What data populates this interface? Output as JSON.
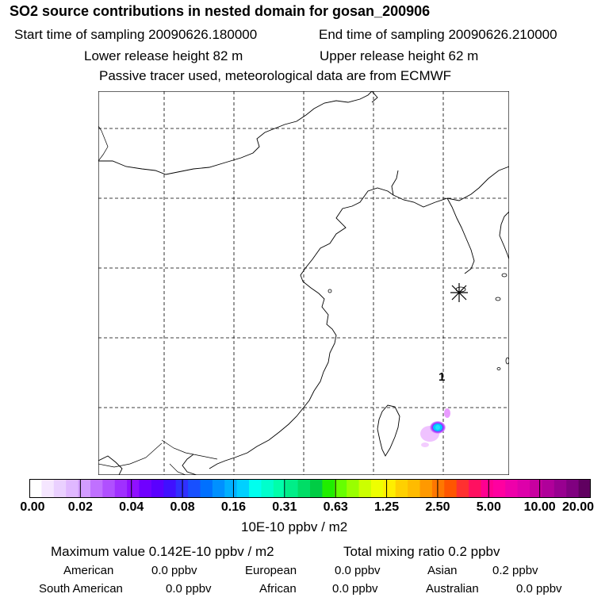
{
  "header": {
    "title": "SO2 source contributions in nested domain for gosan_200906",
    "start_sampling": "Start time of sampling 20090626.180000",
    "end_sampling": "End time of sampling 20090626.210000",
    "lower_release": "Lower release height   82 m",
    "upper_release": "Upper release height   62 m",
    "tracer_note": "Passive tracer used, meteorological data are from ECMWF"
  },
  "map": {
    "receptor_icon": "asterisk-icon",
    "source_label": "1",
    "plume_peak_color": "#00c8ff",
    "plume_outer_color": "#e080ff"
  },
  "colorbar": {
    "ticks": [
      "0.00",
      "0.02",
      "0.04",
      "0.08",
      "0.16",
      "0.31",
      "0.63",
      "1.25",
      "2.50",
      "5.00",
      "10.00",
      "20.00"
    ],
    "colors": [
      "#ffffff",
      "#f5e6ff",
      "#ead0ff",
      "#e0b8ff",
      "#d39cff",
      "#c070ff",
      "#b050ff",
      "#a030ff",
      "#9010ff",
      "#7000ff",
      "#5a00ff",
      "#4010ff",
      "#3030ff",
      "#1850ff",
      "#0070ff",
      "#0090ff",
      "#00b0ff",
      "#00d0ff",
      "#00ffee",
      "#00ffcc",
      "#00ffaa",
      "#00ee88",
      "#00dd66",
      "#00cc44",
      "#20ee00",
      "#66ff00",
      "#99ff00",
      "#ccff00",
      "#eeff00",
      "#ffee00",
      "#ffd000",
      "#ffbb00",
      "#ff9900",
      "#ff7700",
      "#ff5500",
      "#ff3030",
      "#ff1060",
      "#ff0090",
      "#ff00a0",
      "#ee00aa",
      "#dd00aa",
      "#c800a0",
      "#b0009a",
      "#980090",
      "#800080",
      "#600060"
    ],
    "units": "10E-10 ppbv / m2"
  },
  "summary": {
    "max_value": "Maximum value  0.142E-10 ppbv / m2",
    "total_mixing": "Total mixing ratio       0.2 ppbv",
    "regions": [
      {
        "name": "American",
        "value": "0.0 ppbv"
      },
      {
        "name": "European",
        "value": "0.0 ppbv"
      },
      {
        "name": "Asian",
        "value": "0.2 ppbv"
      },
      {
        "name": "South American",
        "value": "0.0 ppbv"
      },
      {
        "name": "African",
        "value": "0.0 ppbv"
      },
      {
        "name": "Australian",
        "value": "0.0 ppbv"
      }
    ]
  }
}
